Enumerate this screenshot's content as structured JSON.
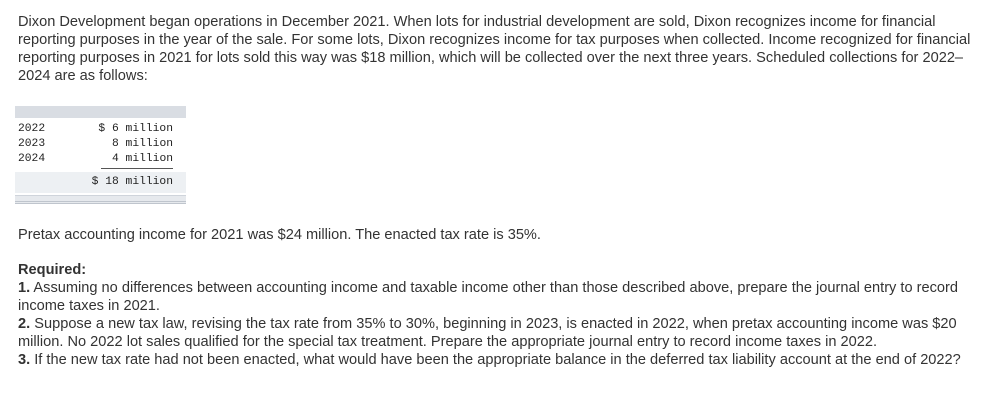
{
  "intro": {
    "text": "Dixon Development began operations in December 2021. When lots for industrial development are sold, Dixon recognizes income for financial reporting purposes in the year of the sale. For some lots, Dixon recognizes income for tax purposes when collected. Income recognized for financial reporting purposes in 2021 for lots sold this way was $18 million, which will be collected over the next three years. Scheduled collections for 2022–2024 are as follows:"
  },
  "schedule": {
    "rows": [
      {
        "year": "2022",
        "amount": "$ 6 million"
      },
      {
        "year": "2023",
        "amount": "8 million"
      },
      {
        "year": "2024",
        "amount": "4 million"
      }
    ],
    "total": "$ 18 million"
  },
  "pretax": {
    "text": "Pretax accounting income for 2021 was $24 million. The enacted tax rate is 35%."
  },
  "required": {
    "heading": "Required:",
    "items": [
      {
        "num": "1.",
        "text": "Assuming no differences between accounting income and taxable income other than those described above, prepare the journal entry to record income taxes in 2021."
      },
      {
        "num": "2.",
        "text": "Suppose a new tax law, revising the tax rate from 35% to 30%, beginning in 2023, is enacted in 2022, when pretax accounting income was $20 million. No 2022 lot sales qualified for the special tax treatment. Prepare the appropriate journal entry to record income taxes in 2022."
      },
      {
        "num": "3.",
        "text": "If the new tax rate had not been enacted, what would have been the appropriate balance in the deferred tax liability account at the end of 2022?"
      }
    ]
  }
}
